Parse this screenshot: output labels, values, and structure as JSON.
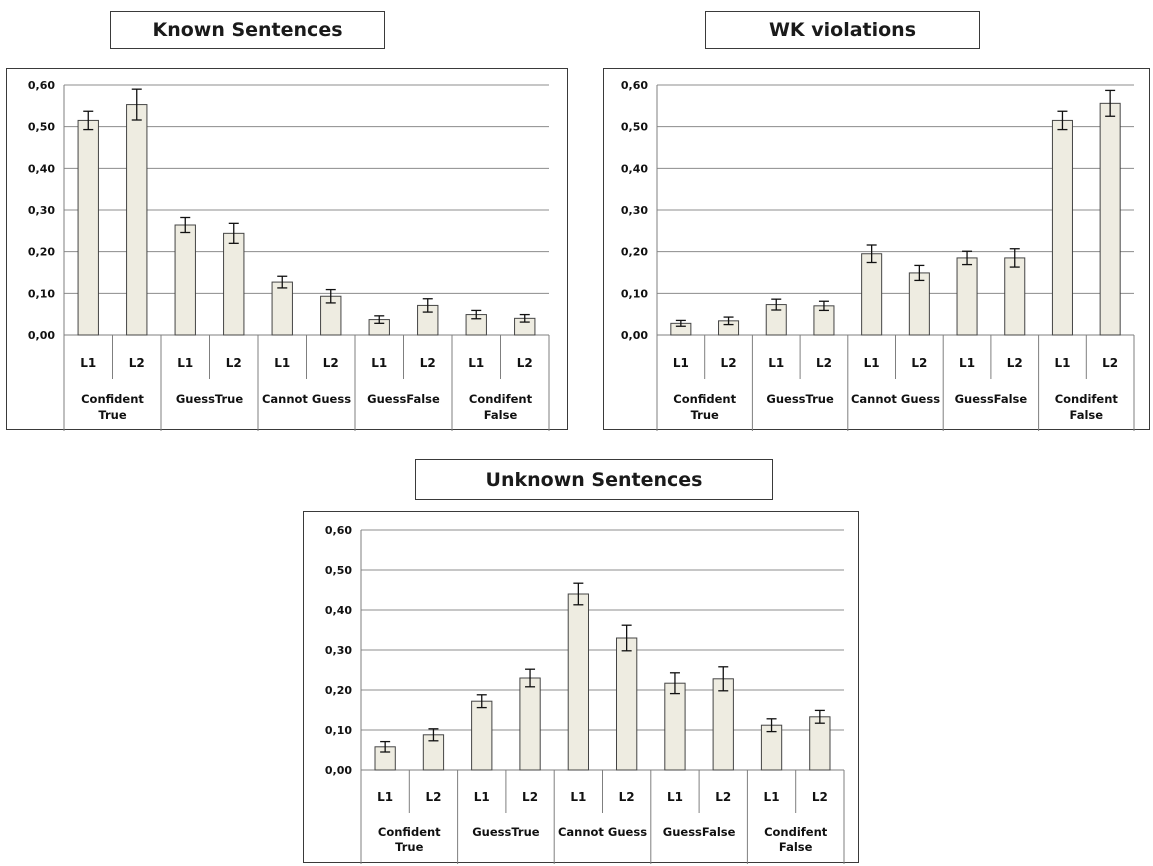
{
  "chart_data": [
    {
      "type": "bar",
      "title": "Known Sentences",
      "groups": [
        {
          "label_lines": [
            "Confident",
            "True"
          ]
        },
        {
          "label_lines": [
            "GuessTrue"
          ]
        },
        {
          "label_lines": [
            "Cannot Guess"
          ]
        },
        {
          "label_lines": [
            "GuessFalse"
          ]
        },
        {
          "label_lines": [
            "Condifent",
            "False"
          ]
        }
      ],
      "sub_categories": [
        "L1",
        "L2"
      ],
      "values": [
        0.515,
        0.553,
        0.264,
        0.244,
        0.127,
        0.093,
        0.037,
        0.071,
        0.049,
        0.04
      ],
      "errors": [
        0.022,
        0.037,
        0.018,
        0.024,
        0.014,
        0.016,
        0.009,
        0.016,
        0.01,
        0.009
      ],
      "ylim": [
        0,
        0.6
      ],
      "yticks": [
        "0,00",
        "0,10",
        "0,20",
        "0,30",
        "0,40",
        "0,50",
        "0,60"
      ],
      "grid": true,
      "bar_color": "#eeece1"
    },
    {
      "type": "bar",
      "title": "WK violations",
      "groups": [
        {
          "label_lines": [
            "Confident",
            "True"
          ]
        },
        {
          "label_lines": [
            "GuessTrue"
          ]
        },
        {
          "label_lines": [
            "Cannot Guess"
          ]
        },
        {
          "label_lines": [
            "GuessFalse"
          ]
        },
        {
          "label_lines": [
            "Condifent",
            "False"
          ]
        }
      ],
      "sub_categories": [
        "L1",
        "L2"
      ],
      "values": [
        0.028,
        0.034,
        0.073,
        0.07,
        0.195,
        0.149,
        0.185,
        0.185,
        0.515,
        0.556
      ],
      "errors": [
        0.007,
        0.009,
        0.013,
        0.011,
        0.021,
        0.018,
        0.016,
        0.022,
        0.022,
        0.031
      ],
      "ylim": [
        0,
        0.6
      ],
      "yticks": [
        "0,00",
        "0,10",
        "0,20",
        "0,30",
        "0,40",
        "0,50",
        "0,60"
      ],
      "grid": true,
      "bar_color": "#eeece1"
    },
    {
      "type": "bar",
      "title": "Unknown Sentences",
      "groups": [
        {
          "label_lines": [
            "Confident",
            "True"
          ]
        },
        {
          "label_lines": [
            "GuessTrue"
          ]
        },
        {
          "label_lines": [
            "Cannot Guess"
          ]
        },
        {
          "label_lines": [
            "GuessFalse"
          ]
        },
        {
          "label_lines": [
            "Condifent",
            "False"
          ]
        }
      ],
      "sub_categories": [
        "L1",
        "L2"
      ],
      "values": [
        0.058,
        0.088,
        0.172,
        0.23,
        0.44,
        0.33,
        0.217,
        0.228,
        0.112,
        0.133
      ],
      "errors": [
        0.013,
        0.015,
        0.016,
        0.022,
        0.027,
        0.032,
        0.026,
        0.03,
        0.016,
        0.016
      ],
      "ylim": [
        0,
        0.6
      ],
      "yticks": [
        "0,00",
        "0,10",
        "0,20",
        "0,30",
        "0,40",
        "0,50",
        "0,60"
      ],
      "grid": true,
      "bar_color": "#eeece1"
    }
  ]
}
